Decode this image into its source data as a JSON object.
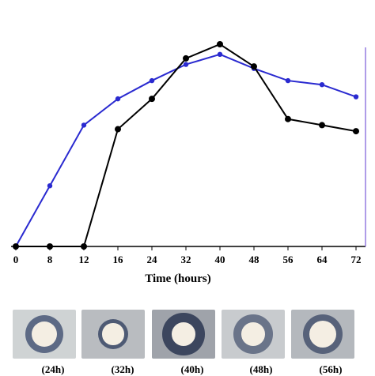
{
  "chart_data": {
    "type": "line",
    "x": [
      0,
      8,
      12,
      16,
      24,
      32,
      40,
      48,
      56,
      64,
      72
    ],
    "xlabel": "Time (hours)",
    "ylabel": "",
    "title": "",
    "ylim": [
      0,
      100
    ],
    "grid": false,
    "series": [
      {
        "color": "#2a2ad0",
        "values": [
          0,
          30,
          60,
          73,
          82,
          90,
          95,
          88,
          82,
          80,
          74
        ]
      },
      {
        "color": "#000000",
        "values": [
          0,
          0,
          0,
          58,
          73,
          93,
          100,
          89,
          63,
          60,
          57
        ]
      }
    ]
  },
  "plates": [
    {
      "label": "(24h)",
      "bg": "#cfd3d4",
      "ring": "#5d6a85",
      "ring_size": 0.78,
      "disc_size": 0.52
    },
    {
      "label": "(32h)",
      "bg": "#b9bcc0",
      "ring": "#4e5a74",
      "ring_size": 0.62,
      "disc_size": 0.44
    },
    {
      "label": "(40h)",
      "bg": "#9fa3aa",
      "ring": "#3c465e",
      "ring_size": 0.86,
      "disc_size": 0.48
    },
    {
      "label": "(48h)",
      "bg": "#c8cbce",
      "ring": "#6a7489",
      "ring_size": 0.8,
      "disc_size": 0.48
    },
    {
      "label": "(56h)",
      "bg": "#b4b8bd",
      "ring": "#57627a",
      "ring_size": 0.82,
      "disc_size": 0.56
    }
  ]
}
